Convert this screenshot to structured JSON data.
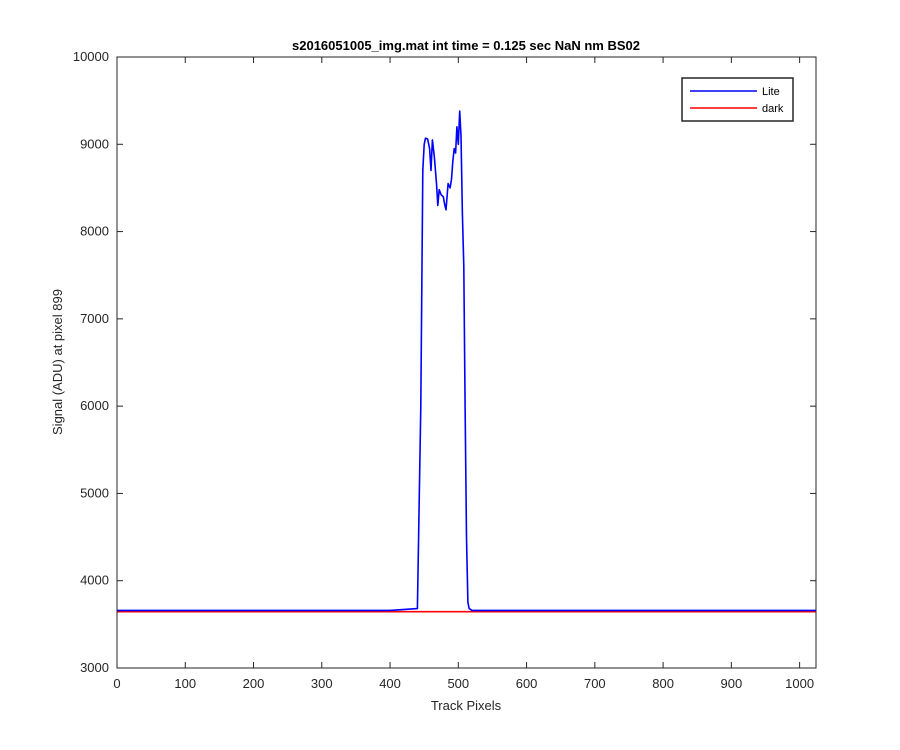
{
  "chart_data": {
    "type": "line",
    "title": "s2016051005_img.mat int time = 0.125 sec  NaN nm BS02",
    "xlabel": "Track Pixels",
    "ylabel": "Signal (ADU) at pixel 899",
    "xlim": [
      0,
      1024
    ],
    "ylim": [
      3000,
      10000
    ],
    "xticks": [
      0,
      100,
      200,
      300,
      400,
      500,
      600,
      700,
      800,
      900,
      1000
    ],
    "yticks": [
      3000,
      4000,
      5000,
      6000,
      7000,
      8000,
      9000,
      10000
    ],
    "grid": false,
    "legend_position": "top-right",
    "series": [
      {
        "name": "Lite",
        "color": "#0000ff",
        "x": [
          0,
          100,
          200,
          300,
          400,
          440,
          445,
          448,
          450,
          452,
          455,
          458,
          460,
          462,
          465,
          468,
          470,
          472,
          475,
          478,
          480,
          482,
          485,
          488,
          490,
          492,
          494,
          496,
          498,
          500,
          502,
          504,
          506,
          508,
          510,
          512,
          514,
          516,
          520,
          600,
          700,
          800,
          900,
          1024
        ],
        "y": [
          3660,
          3660,
          3660,
          3660,
          3660,
          3680,
          6000,
          8700,
          9000,
          9070,
          9060,
          8950,
          8700,
          9050,
          8850,
          8550,
          8300,
          8480,
          8420,
          8400,
          8310,
          8250,
          8550,
          8500,
          8600,
          8800,
          8950,
          8900,
          9200,
          9000,
          9380,
          9100,
          8200,
          7600,
          6000,
          4500,
          3750,
          3680,
          3660,
          3660,
          3660,
          3660,
          3660,
          3660
        ]
      },
      {
        "name": "dark",
        "color": "#ff0000",
        "x": [
          0,
          1024
        ],
        "y": [
          3645,
          3645
        ]
      }
    ]
  }
}
